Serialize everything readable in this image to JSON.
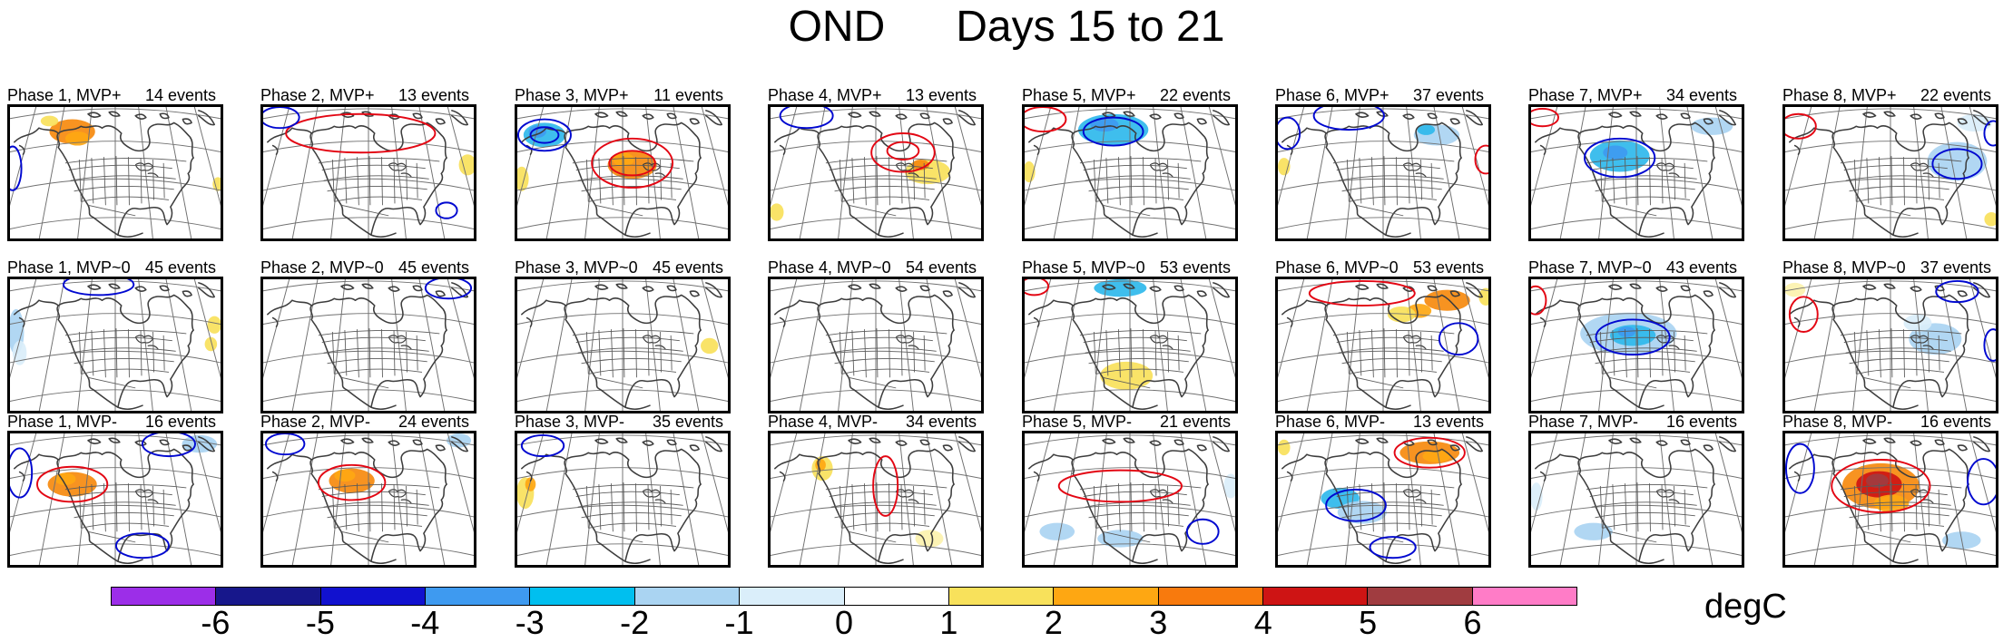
{
  "title": {
    "left": "OND",
    "right": "Days 15 to 21"
  },
  "colorbar": {
    "unit": "degC",
    "tick_labels": [
      "-6",
      "-5",
      "-4",
      "-3",
      "-2",
      "-1",
      "0",
      "1",
      "2",
      "3",
      "4",
      "5",
      "6"
    ],
    "segment_colors": [
      "#9C2EE8",
      "#17178B",
      "#1111CF",
      "#3E9AF0",
      "#00BFEF",
      "#AAD4F2",
      "#DAEEFA",
      "#FFFFFF",
      "#F8E15B",
      "#FEA712",
      "#F87A0D",
      "#CE1414",
      "#A03C40",
      "#FF7CC7"
    ]
  },
  "feature_colors": {
    "orange": "#F68A0E",
    "amber": "#FEA712",
    "yellow": "#F8E15B",
    "paleyellow": "#FCF2AE",
    "red": "#CE1414",
    "darkred": "#A03C40",
    "cyan": "#2FB9EC",
    "dodger": "#3E9AF0",
    "lightblue": "#AAD4F2",
    "paleblue": "#DAEEFA"
  },
  "contour_colors": {
    "red": "#E30613",
    "blue": "#0008D0"
  },
  "panels": [
    {
      "label": "Phase 1, MVP+",
      "events": "14 events",
      "f": [
        [
          "b",
          "orange",
          70,
          28,
          26,
          14
        ],
        [
          "b",
          "amber",
          76,
          36,
          14,
          8
        ],
        [
          "b",
          "yellow",
          44,
          16,
          10,
          6
        ],
        [
          "b",
          "yellow",
          236,
          88,
          6,
          8
        ],
        [
          "c",
          "blue",
          2,
          70,
          10,
          25
        ]
      ]
    },
    {
      "label": "Phase 2, MVP+",
      "events": "13 events",
      "f": [
        [
          "c",
          "red",
          110,
          30,
          85,
          22
        ],
        [
          "c",
          "blue",
          18,
          12,
          22,
          12
        ],
        [
          "b",
          "yellow",
          232,
          66,
          10,
          12
        ],
        [
          "c",
          "blue",
          208,
          118,
          12,
          9
        ]
      ]
    },
    {
      "label": "Phase 3, MVP+",
      "events": "11 events",
      "f": [
        [
          "b",
          "cyan",
          30,
          32,
          24,
          14
        ],
        [
          "b",
          "dodger",
          22,
          28,
          10,
          7
        ],
        [
          "b",
          "orange",
          130,
          66,
          28,
          16
        ],
        [
          "b",
          "amber",
          120,
          60,
          12,
          8
        ],
        [
          "b",
          "yellow",
          4,
          82,
          8,
          14
        ],
        [
          "c",
          "blue",
          30,
          32,
          30,
          18
        ],
        [
          "c",
          "blue",
          30,
          32,
          16,
          9
        ],
        [
          "c",
          "red",
          130,
          64,
          46,
          28
        ],
        [
          "c",
          "red",
          130,
          64,
          26,
          14
        ]
      ]
    },
    {
      "label": "Phase 4, MVP+",
      "events": "13 events",
      "f": [
        [
          "b",
          "yellow",
          178,
          74,
          26,
          14
        ],
        [
          "b",
          "orange",
          170,
          66,
          10,
          6
        ],
        [
          "b",
          "yellow",
          6,
          120,
          8,
          10
        ],
        [
          "c",
          "blue",
          40,
          10,
          30,
          14
        ],
        [
          "c",
          "red",
          150,
          52,
          36,
          22
        ],
        [
          "c",
          "red",
          150,
          50,
          18,
          10
        ]
      ]
    },
    {
      "label": "Phase 5, MVP+",
      "events": "22 events",
      "f": [
        [
          "b",
          "cyan",
          100,
          26,
          40,
          18
        ],
        [
          "b",
          "dodger",
          90,
          20,
          16,
          8
        ],
        [
          "b",
          "yellow",
          4,
          74,
          7,
          12
        ],
        [
          "c",
          "blue",
          100,
          28,
          34,
          16
        ],
        [
          "c",
          "red",
          20,
          14,
          26,
          14
        ]
      ]
    },
    {
      "label": "Phase 6, MVP+",
      "events": "37 events",
      "f": [
        [
          "b",
          "lightblue",
          180,
          32,
          26,
          12
        ],
        [
          "b",
          "cyan",
          168,
          26,
          10,
          6
        ],
        [
          "b",
          "yellow",
          6,
          68,
          7,
          10
        ],
        [
          "c",
          "blue",
          80,
          10,
          40,
          16
        ],
        [
          "c",
          "blue",
          10,
          30,
          14,
          18
        ],
        [
          "c",
          "red",
          236,
          60,
          12,
          16
        ]
      ]
    },
    {
      "label": "Phase 7, MVP+",
      "events": "34 events",
      "f": [
        [
          "b",
          "cyan",
          100,
          56,
          34,
          18
        ],
        [
          "b",
          "dodger",
          95,
          52,
          14,
          8
        ],
        [
          "b",
          "lightblue",
          205,
          22,
          24,
          10
        ],
        [
          "c",
          "blue",
          100,
          58,
          40,
          22
        ],
        [
          "c",
          "red",
          12,
          12,
          18,
          10
        ]
      ]
    },
    {
      "label": "Phase 8, MVP+",
      "events": "22 events",
      "f": [
        [
          "b",
          "lightblue",
          195,
          62,
          34,
          22
        ],
        [
          "b",
          "paleblue",
          215,
          18,
          20,
          10
        ],
        [
          "b",
          "yellow",
          234,
          128,
          8,
          8
        ],
        [
          "c",
          "red",
          14,
          22,
          20,
          14
        ],
        [
          "c",
          "blue",
          195,
          65,
          28,
          17
        ],
        [
          "c",
          "blue",
          236,
          30,
          10,
          14
        ]
      ]
    },
    {
      "label": "Phase 1, MVP~0",
      "events": "45 events",
      "f": [
        [
          "b",
          "lightblue",
          6,
          60,
          9,
          26
        ],
        [
          "b",
          "paleblue",
          10,
          84,
          8,
          14
        ],
        [
          "b",
          "yellow",
          232,
          52,
          8,
          10
        ],
        [
          "b",
          "yellow",
          228,
          74,
          7,
          8
        ],
        [
          "c",
          "blue",
          100,
          6,
          40,
          12
        ]
      ]
    },
    {
      "label": "Phase 2, MVP~0",
      "events": "45 events",
      "f": [
        [
          "c",
          "blue",
          210,
          10,
          26,
          12
        ]
      ]
    },
    {
      "label": "Phase 3, MVP~0",
      "events": "45 events",
      "f": [
        [
          "b",
          "yellow",
          218,
          76,
          10,
          9
        ]
      ]
    },
    {
      "label": "Phase 4, MVP~0",
      "events": "54 events",
      "f": []
    },
    {
      "label": "Phase 5, MVP~0",
      "events": "53 events",
      "f": [
        [
          "b",
          "cyan",
          108,
          10,
          30,
          10
        ],
        [
          "b",
          "yellow",
          115,
          110,
          30,
          16
        ],
        [
          "c",
          "red",
          10,
          8,
          16,
          10
        ]
      ]
    },
    {
      "label": "Phase 6, MVP~0",
      "events": "53 events",
      "f": [
        [
          "b",
          "orange",
          192,
          24,
          26,
          12
        ],
        [
          "b",
          "amber",
          160,
          36,
          14,
          8
        ],
        [
          "b",
          "yellow",
          140,
          40,
          16,
          9
        ],
        [
          "b",
          "yellow",
          236,
          20,
          8,
          10
        ],
        [
          "c",
          "red",
          95,
          16,
          60,
          14
        ],
        [
          "c",
          "blue",
          205,
          68,
          22,
          18
        ]
      ]
    },
    {
      "label": "Phase 7, MVP~0",
      "events": "43 events",
      "f": [
        [
          "b",
          "lightblue",
          110,
          62,
          55,
          24
        ],
        [
          "b",
          "cyan",
          115,
          64,
          26,
          12
        ],
        [
          "b",
          "dodger",
          108,
          60,
          10,
          6
        ],
        [
          "c",
          "blue",
          115,
          66,
          42,
          20
        ],
        [
          "c",
          "red",
          4,
          24,
          12,
          16
        ]
      ]
    },
    {
      "label": "Phase 8, MVP~0",
      "events": "37 events",
      "f": [
        [
          "b",
          "paleyellow",
          10,
          12,
          12,
          8
        ],
        [
          "b",
          "lightblue",
          170,
          68,
          30,
          18
        ],
        [
          "b",
          "paleblue",
          150,
          50,
          16,
          10
        ],
        [
          "c",
          "red",
          20,
          40,
          16,
          20
        ],
        [
          "c",
          "blue",
          195,
          14,
          24,
          12
        ],
        [
          "c",
          "blue",
          236,
          75,
          10,
          18
        ]
      ]
    },
    {
      "label": "Phase 1, MVP-",
      "events": "16 events",
      "f": [
        [
          "b",
          "orange",
          70,
          58,
          28,
          14
        ],
        [
          "b",
          "amber",
          62,
          52,
          12,
          7
        ],
        [
          "b",
          "lightblue",
          215,
          12,
          20,
          10
        ],
        [
          "c",
          "red",
          70,
          58,
          40,
          20
        ],
        [
          "c",
          "blue",
          10,
          45,
          14,
          28
        ],
        [
          "c",
          "blue",
          180,
          12,
          30,
          14
        ],
        [
          "c",
          "blue",
          150,
          128,
          30,
          14
        ]
      ]
    },
    {
      "label": "Phase 2, MVP-",
      "events": "24 events",
      "f": [
        [
          "b",
          "orange",
          100,
          54,
          26,
          14
        ],
        [
          "b",
          "amber",
          92,
          48,
          12,
          7
        ],
        [
          "b",
          "lightblue",
          222,
          8,
          14,
          8
        ],
        [
          "c",
          "red",
          100,
          56,
          38,
          20
        ],
        [
          "c",
          "blue",
          24,
          12,
          22,
          12
        ]
      ]
    },
    {
      "label": "Phase 3, MVP-",
      "events": "35 events",
      "f": [
        [
          "b",
          "yellow",
          8,
          68,
          10,
          18
        ],
        [
          "b",
          "amber",
          14,
          58,
          6,
          8
        ],
        [
          "c",
          "blue",
          28,
          14,
          24,
          12
        ]
      ]
    },
    {
      "label": "Phase 4, MVP-",
      "events": "34 events",
      "f": [
        [
          "b",
          "yellow",
          58,
          40,
          12,
          14
        ],
        [
          "b",
          "amber",
          56,
          36,
          6,
          7
        ],
        [
          "b",
          "paleyellow",
          180,
          120,
          16,
          10
        ],
        [
          "c",
          "red",
          130,
          60,
          14,
          34
        ]
      ]
    },
    {
      "label": "Phase 5, MVP-",
      "events": "21 events",
      "f": [
        [
          "b",
          "lightblue",
          36,
          112,
          20,
          10
        ],
        [
          "b",
          "lightblue",
          108,
          120,
          26,
          10
        ],
        [
          "b",
          "paleblue",
          234,
          60,
          8,
          14
        ],
        [
          "c",
          "red",
          108,
          60,
          70,
          18
        ],
        [
          "c",
          "blue",
          202,
          112,
          18,
          14
        ]
      ]
    },
    {
      "label": "Phase 6, MVP-",
      "events": "13 events",
      "f": [
        [
          "b",
          "orange",
          172,
          22,
          34,
          13
        ],
        [
          "b",
          "amber",
          180,
          26,
          16,
          7
        ],
        [
          "b",
          "cyan",
          70,
          74,
          22,
          12
        ],
        [
          "b",
          "lightblue",
          95,
          90,
          28,
          13
        ],
        [
          "b",
          "yellow",
          6,
          16,
          7,
          9
        ],
        [
          "c",
          "red",
          172,
          22,
          40,
          17
        ],
        [
          "c",
          "blue",
          88,
          82,
          34,
          18
        ],
        [
          "c",
          "blue",
          130,
          130,
          26,
          12
        ]
      ]
    },
    {
      "label": "Phase 7, MVP-",
      "events": "16 events",
      "f": [
        [
          "b",
          "paleblue",
          5,
          72,
          7,
          16
        ],
        [
          "b",
          "lightblue",
          70,
          112,
          22,
          10
        ]
      ]
    },
    {
      "label": "Phase 8, MVP-",
      "events": "16 events",
      "f": [
        [
          "b",
          "orange",
          108,
          60,
          44,
          26
        ],
        [
          "b",
          "red",
          106,
          58,
          26,
          15
        ],
        [
          "b",
          "darkred",
          104,
          54,
          13,
          8
        ],
        [
          "b",
          "amber",
          120,
          80,
          20,
          10
        ],
        [
          "b",
          "lightblue",
          200,
          122,
          22,
          10
        ],
        [
          "c",
          "red",
          108,
          60,
          56,
          30
        ],
        [
          "c",
          "blue",
          16,
          40,
          16,
          28
        ],
        [
          "c",
          "blue",
          225,
          55,
          18,
          26
        ]
      ]
    }
  ],
  "chart_data": {
    "type": "heatmap",
    "title": "OND Days 15 to 21",
    "subtitle": "Composite temperature anomaly maps over North America by MJO/MVP phase",
    "rows": [
      "MVP+",
      "MVP~0",
      "MVP-"
    ],
    "columns": [
      "Phase 1",
      "Phase 2",
      "Phase 3",
      "Phase 4",
      "Phase 5",
      "Phase 6",
      "Phase 7",
      "Phase 8"
    ],
    "series": [
      {
        "name": "MVP+ events",
        "values": [
          14,
          13,
          11,
          13,
          22,
          37,
          34,
          22
        ]
      },
      {
        "name": "MVP~0 events",
        "values": [
          45,
          45,
          45,
          54,
          53,
          53,
          43,
          37
        ]
      },
      {
        "name": "MVP- events",
        "values": [
          16,
          24,
          35,
          34,
          21,
          13,
          16,
          16
        ]
      }
    ],
    "colorbar": {
      "label": "degC",
      "ticks": [
        -6,
        -5,
        -4,
        -3,
        -2,
        -1,
        0,
        1,
        2,
        3,
        4,
        5,
        6
      ],
      "range": [
        -7,
        7
      ],
      "position": "bottom"
    },
    "grid": "off",
    "legend_position": "none"
  }
}
